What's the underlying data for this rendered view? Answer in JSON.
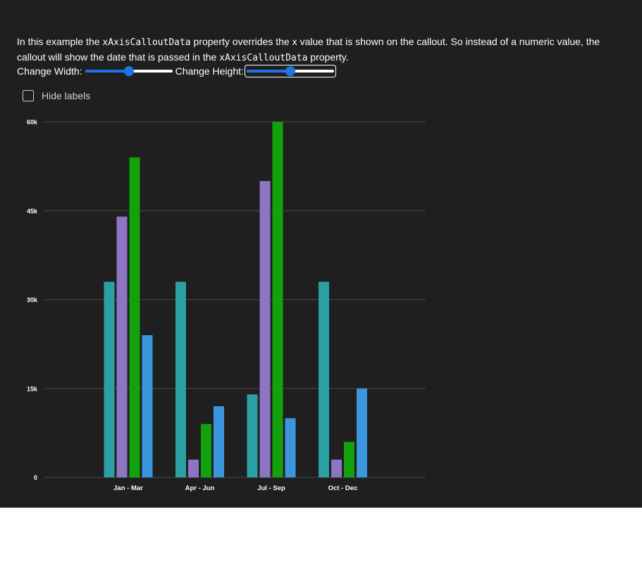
{
  "description": {
    "part1": "In this example the ",
    "code1": "xAxisCalloutData",
    "part2": " property overrides the x value that is shown on the callout. So instead of a numeric value, the callout will show the date that is passed in the ",
    "code2": "xAxisCalloutData",
    "part3": " property."
  },
  "controls": {
    "width_label": "Change Width:",
    "height_label": "Change Height:",
    "width_value": 0.5,
    "height_value": 0.5
  },
  "hide_labels": {
    "label": "Hide labels",
    "checked": false
  },
  "colors": {
    "panel_bg": "#1f1f1f",
    "slider_accent": "#1e74e6",
    "gridline": "#4a4a4a",
    "axis_text": "#ffffff"
  },
  "chart_data": {
    "type": "bar",
    "title": "",
    "xlabel": "",
    "ylabel": "",
    "categories": [
      "Jan - Mar",
      "Apr - Jun",
      "Jul - Sep",
      "Oct - Dec"
    ],
    "y_ticks": [
      0,
      15000,
      30000,
      45000,
      60000
    ],
    "y_tick_labels": [
      "0",
      "15k",
      "30k",
      "45k",
      "60k"
    ],
    "ylim": [
      0,
      60000
    ],
    "grid": true,
    "legend": "none",
    "series": [
      {
        "color": "#2aa0a4",
        "values": [
          33000,
          33000,
          14000,
          33000
        ]
      },
      {
        "color": "#8e75c4",
        "values": [
          44000,
          3000,
          50000,
          3000
        ]
      },
      {
        "color": "#13a10e",
        "values": [
          54000,
          9000,
          60000,
          6000
        ]
      },
      {
        "color": "#3a96dd",
        "values": [
          24000,
          12000,
          10000,
          15000
        ]
      }
    ]
  }
}
